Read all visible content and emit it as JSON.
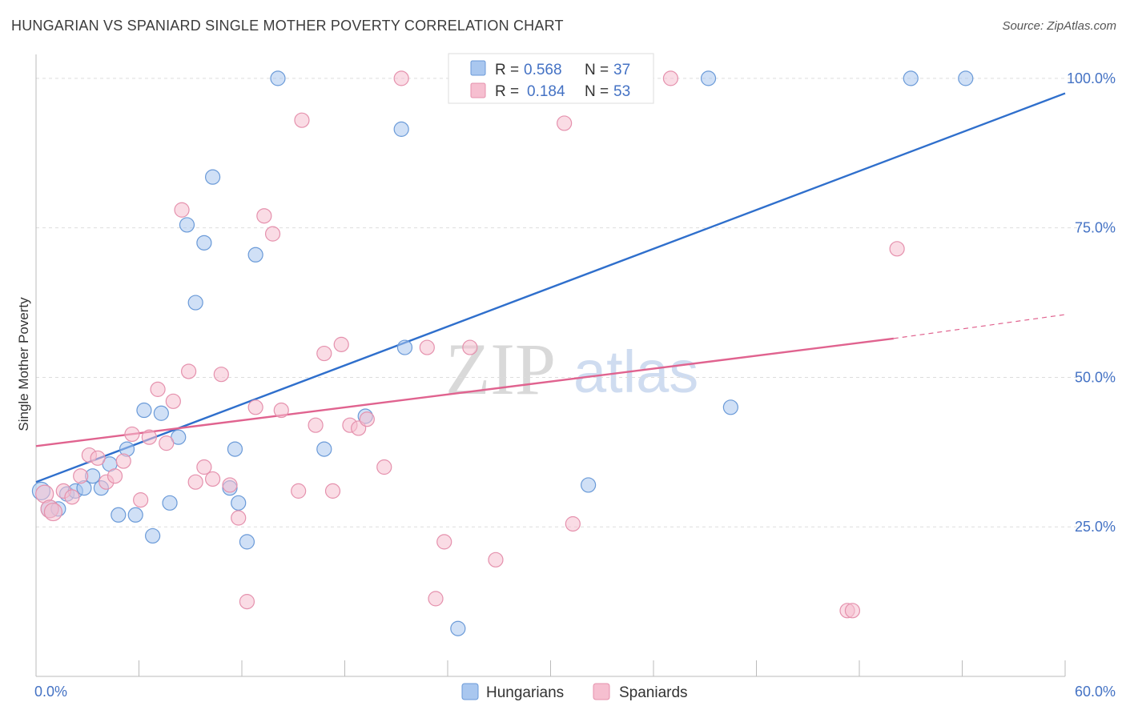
{
  "title": "HUNGARIAN VS SPANIARD SINGLE MOTHER POVERTY CORRELATION CHART",
  "source": "Source: ZipAtlas.com",
  "watermark": {
    "zip": "ZIP",
    "atlas": "atlas"
  },
  "colors": {
    "hungarians_fill": "#a9c7ef",
    "hungarians_stroke": "#6a9ad8",
    "hungarians_line": "#2f6fcc",
    "spaniards_fill": "#f6bfd0",
    "spaniards_stroke": "#e591ad",
    "spaniards_line": "#e0638f",
    "tick_text": "#4472c4",
    "grid": "#dddddd"
  },
  "chart_data": {
    "type": "scatter",
    "ylabel": "Single Mother Poverty",
    "xlim": [
      0,
      60
    ],
    "ylim": [
      0,
      104
    ],
    "x_tick_labels": [
      {
        "value": 0,
        "label": "0.0%"
      },
      {
        "value": 60,
        "label": "60.0%"
      }
    ],
    "y_tick_labels": [
      {
        "value": 25,
        "label": "25.0%"
      },
      {
        "value": 50,
        "label": "50.0%"
      },
      {
        "value": 75,
        "label": "75.0%"
      },
      {
        "value": 100,
        "label": "100.0%"
      }
    ],
    "grid": "horizontal dashed",
    "legend": {
      "placement": "top-center",
      "entries": [
        {
          "r_label": "R =",
          "r_value": "0.568",
          "n_label": "N =",
          "n_value": "37"
        },
        {
          "r_label": "R =",
          "r_value": "0.184",
          "n_label": "N =",
          "n_value": "53"
        }
      ]
    },
    "series": [
      {
        "name": "Hungarians",
        "trend": {
          "x": [
            0,
            60
          ],
          "y": [
            32.5,
            97.5
          ]
        },
        "points": [
          [
            0.3,
            31.0
          ],
          [
            0.8,
            28.0
          ],
          [
            1.3,
            28.0
          ],
          [
            1.8,
            30.5
          ],
          [
            2.3,
            31.0
          ],
          [
            2.8,
            31.5
          ],
          [
            3.3,
            33.5
          ],
          [
            3.8,
            31.5
          ],
          [
            4.3,
            35.5
          ],
          [
            4.8,
            27.0
          ],
          [
            5.3,
            38.0
          ],
          [
            5.8,
            27.0
          ],
          [
            6.3,
            44.5
          ],
          [
            6.8,
            23.5
          ],
          [
            7.3,
            44.0
          ],
          [
            7.8,
            29.0
          ],
          [
            8.3,
            40.0
          ],
          [
            8.8,
            75.5
          ],
          [
            9.3,
            62.5
          ],
          [
            9.8,
            72.5
          ],
          [
            10.3,
            83.5
          ],
          [
            11.3,
            31.5
          ],
          [
            11.6,
            38.0
          ],
          [
            11.8,
            29.0
          ],
          [
            12.3,
            22.5
          ],
          [
            12.8,
            70.5
          ],
          [
            14.1,
            100.0
          ],
          [
            16.8,
            38.0
          ],
          [
            19.2,
            43.5
          ],
          [
            21.3,
            91.5
          ],
          [
            21.5,
            55.0
          ],
          [
            24.6,
            8.0
          ],
          [
            32.2,
            32.0
          ],
          [
            39.2,
            100.0
          ],
          [
            40.5,
            45.0
          ],
          [
            51.0,
            100.0
          ],
          [
            54.2,
            100.0
          ]
        ]
      },
      {
        "name": "Spaniards",
        "trend": {
          "x": [
            0,
            50
          ],
          "y": [
            38.5,
            56.5
          ]
        },
        "trend_extension": {
          "x": [
            50,
            60
          ],
          "y": [
            56.5,
            60.5
          ]
        },
        "points": [
          [
            0.5,
            30.5
          ],
          [
            0.8,
            28.0
          ],
          [
            1.0,
            27.5
          ],
          [
            1.6,
            31.0
          ],
          [
            2.1,
            30.0
          ],
          [
            2.6,
            33.5
          ],
          [
            3.1,
            37.0
          ],
          [
            3.6,
            36.5
          ],
          [
            4.1,
            32.5
          ],
          [
            4.6,
            33.5
          ],
          [
            5.1,
            36.0
          ],
          [
            5.6,
            40.5
          ],
          [
            6.1,
            29.5
          ],
          [
            6.6,
            40.0
          ],
          [
            7.1,
            48.0
          ],
          [
            7.6,
            39.0
          ],
          [
            8.0,
            46.0
          ],
          [
            8.5,
            78.0
          ],
          [
            8.9,
            51.0
          ],
          [
            9.3,
            32.5
          ],
          [
            9.8,
            35.0
          ],
          [
            10.3,
            33.0
          ],
          [
            10.8,
            50.5
          ],
          [
            11.3,
            32.0
          ],
          [
            11.8,
            26.5
          ],
          [
            12.3,
            12.5
          ],
          [
            12.8,
            45.0
          ],
          [
            13.3,
            77.0
          ],
          [
            13.8,
            74.0
          ],
          [
            14.3,
            44.5
          ],
          [
            15.3,
            31.0
          ],
          [
            15.5,
            93.0
          ],
          [
            16.3,
            42.0
          ],
          [
            16.8,
            54.0
          ],
          [
            17.3,
            31.0
          ],
          [
            17.8,
            55.5
          ],
          [
            18.3,
            42.0
          ],
          [
            18.8,
            41.5
          ],
          [
            19.3,
            43.0
          ],
          [
            20.3,
            35.0
          ],
          [
            21.3,
            100.0
          ],
          [
            22.8,
            55.0
          ],
          [
            23.3,
            13.0
          ],
          [
            23.8,
            22.5
          ],
          [
            24.6,
            100.0
          ],
          [
            25.3,
            55.0
          ],
          [
            26.8,
            19.5
          ],
          [
            30.8,
            92.5
          ],
          [
            31.3,
            25.5
          ],
          [
            37.0,
            100.0
          ],
          [
            47.3,
            11.0
          ],
          [
            47.6,
            11.0
          ],
          [
            50.2,
            71.5
          ]
        ]
      }
    ]
  }
}
